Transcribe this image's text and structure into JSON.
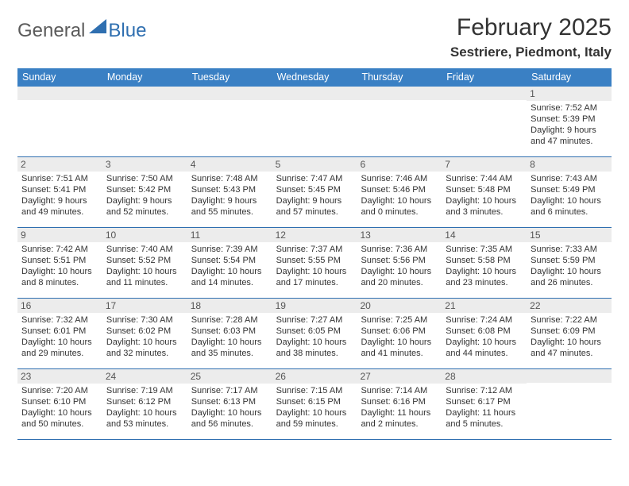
{
  "logo": {
    "part1": "General",
    "part2": "Blue",
    "triangle_color": "#2f6fb0"
  },
  "title": "February 2025",
  "location": "Sestriere, Piedmont, Italy",
  "colors": {
    "header_bg": "#3a80c4",
    "header_text": "#ffffff",
    "row_border": "#2f6fb0",
    "daynum_bg": "#ececec",
    "daynum_text": "#555555",
    "body_text": "#333333",
    "page_bg": "#ffffff"
  },
  "fonts": {
    "title_size": 30,
    "location_size": 17,
    "head_size": 12.5,
    "body_size": 11,
    "daynum_size": 12
  },
  "weekdays": [
    "Sunday",
    "Monday",
    "Tuesday",
    "Wednesday",
    "Thursday",
    "Friday",
    "Saturday"
  ],
  "weeks": [
    [
      null,
      null,
      null,
      null,
      null,
      null,
      {
        "n": "1",
        "sunrise": "Sunrise: 7:52 AM",
        "sunset": "Sunset: 5:39 PM",
        "dl1": "Daylight: 9 hours",
        "dl2": "and 47 minutes."
      }
    ],
    [
      {
        "n": "2",
        "sunrise": "Sunrise: 7:51 AM",
        "sunset": "Sunset: 5:41 PM",
        "dl1": "Daylight: 9 hours",
        "dl2": "and 49 minutes."
      },
      {
        "n": "3",
        "sunrise": "Sunrise: 7:50 AM",
        "sunset": "Sunset: 5:42 PM",
        "dl1": "Daylight: 9 hours",
        "dl2": "and 52 minutes."
      },
      {
        "n": "4",
        "sunrise": "Sunrise: 7:48 AM",
        "sunset": "Sunset: 5:43 PM",
        "dl1": "Daylight: 9 hours",
        "dl2": "and 55 minutes."
      },
      {
        "n": "5",
        "sunrise": "Sunrise: 7:47 AM",
        "sunset": "Sunset: 5:45 PM",
        "dl1": "Daylight: 9 hours",
        "dl2": "and 57 minutes."
      },
      {
        "n": "6",
        "sunrise": "Sunrise: 7:46 AM",
        "sunset": "Sunset: 5:46 PM",
        "dl1": "Daylight: 10 hours",
        "dl2": "and 0 minutes."
      },
      {
        "n": "7",
        "sunrise": "Sunrise: 7:44 AM",
        "sunset": "Sunset: 5:48 PM",
        "dl1": "Daylight: 10 hours",
        "dl2": "and 3 minutes."
      },
      {
        "n": "8",
        "sunrise": "Sunrise: 7:43 AM",
        "sunset": "Sunset: 5:49 PM",
        "dl1": "Daylight: 10 hours",
        "dl2": "and 6 minutes."
      }
    ],
    [
      {
        "n": "9",
        "sunrise": "Sunrise: 7:42 AM",
        "sunset": "Sunset: 5:51 PM",
        "dl1": "Daylight: 10 hours",
        "dl2": "and 8 minutes."
      },
      {
        "n": "10",
        "sunrise": "Sunrise: 7:40 AM",
        "sunset": "Sunset: 5:52 PM",
        "dl1": "Daylight: 10 hours",
        "dl2": "and 11 minutes."
      },
      {
        "n": "11",
        "sunrise": "Sunrise: 7:39 AM",
        "sunset": "Sunset: 5:54 PM",
        "dl1": "Daylight: 10 hours",
        "dl2": "and 14 minutes."
      },
      {
        "n": "12",
        "sunrise": "Sunrise: 7:37 AM",
        "sunset": "Sunset: 5:55 PM",
        "dl1": "Daylight: 10 hours",
        "dl2": "and 17 minutes."
      },
      {
        "n": "13",
        "sunrise": "Sunrise: 7:36 AM",
        "sunset": "Sunset: 5:56 PM",
        "dl1": "Daylight: 10 hours",
        "dl2": "and 20 minutes."
      },
      {
        "n": "14",
        "sunrise": "Sunrise: 7:35 AM",
        "sunset": "Sunset: 5:58 PM",
        "dl1": "Daylight: 10 hours",
        "dl2": "and 23 minutes."
      },
      {
        "n": "15",
        "sunrise": "Sunrise: 7:33 AM",
        "sunset": "Sunset: 5:59 PM",
        "dl1": "Daylight: 10 hours",
        "dl2": "and 26 minutes."
      }
    ],
    [
      {
        "n": "16",
        "sunrise": "Sunrise: 7:32 AM",
        "sunset": "Sunset: 6:01 PM",
        "dl1": "Daylight: 10 hours",
        "dl2": "and 29 minutes."
      },
      {
        "n": "17",
        "sunrise": "Sunrise: 7:30 AM",
        "sunset": "Sunset: 6:02 PM",
        "dl1": "Daylight: 10 hours",
        "dl2": "and 32 minutes."
      },
      {
        "n": "18",
        "sunrise": "Sunrise: 7:28 AM",
        "sunset": "Sunset: 6:03 PM",
        "dl1": "Daylight: 10 hours",
        "dl2": "and 35 minutes."
      },
      {
        "n": "19",
        "sunrise": "Sunrise: 7:27 AM",
        "sunset": "Sunset: 6:05 PM",
        "dl1": "Daylight: 10 hours",
        "dl2": "and 38 minutes."
      },
      {
        "n": "20",
        "sunrise": "Sunrise: 7:25 AM",
        "sunset": "Sunset: 6:06 PM",
        "dl1": "Daylight: 10 hours",
        "dl2": "and 41 minutes."
      },
      {
        "n": "21",
        "sunrise": "Sunrise: 7:24 AM",
        "sunset": "Sunset: 6:08 PM",
        "dl1": "Daylight: 10 hours",
        "dl2": "and 44 minutes."
      },
      {
        "n": "22",
        "sunrise": "Sunrise: 7:22 AM",
        "sunset": "Sunset: 6:09 PM",
        "dl1": "Daylight: 10 hours",
        "dl2": "and 47 minutes."
      }
    ],
    [
      {
        "n": "23",
        "sunrise": "Sunrise: 7:20 AM",
        "sunset": "Sunset: 6:10 PM",
        "dl1": "Daylight: 10 hours",
        "dl2": "and 50 minutes."
      },
      {
        "n": "24",
        "sunrise": "Sunrise: 7:19 AM",
        "sunset": "Sunset: 6:12 PM",
        "dl1": "Daylight: 10 hours",
        "dl2": "and 53 minutes."
      },
      {
        "n": "25",
        "sunrise": "Sunrise: 7:17 AM",
        "sunset": "Sunset: 6:13 PM",
        "dl1": "Daylight: 10 hours",
        "dl2": "and 56 minutes."
      },
      {
        "n": "26",
        "sunrise": "Sunrise: 7:15 AM",
        "sunset": "Sunset: 6:15 PM",
        "dl1": "Daylight: 10 hours",
        "dl2": "and 59 minutes."
      },
      {
        "n": "27",
        "sunrise": "Sunrise: 7:14 AM",
        "sunset": "Sunset: 6:16 PM",
        "dl1": "Daylight: 11 hours",
        "dl2": "and 2 minutes."
      },
      {
        "n": "28",
        "sunrise": "Sunrise: 7:12 AM",
        "sunset": "Sunset: 6:17 PM",
        "dl1": "Daylight: 11 hours",
        "dl2": "and 5 minutes."
      },
      null
    ]
  ]
}
